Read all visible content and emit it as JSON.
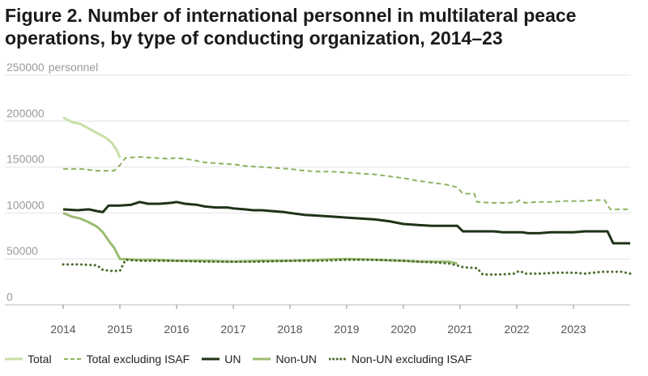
{
  "chart_data": {
    "type": "line",
    "title": "Figure 2. Number of international personnel in multilateral peace operations, by type of conducting organization, 2014–23",
    "ylabel": "personnel",
    "ylim": [
      0,
      250000
    ],
    "yticks": [
      0,
      50000,
      100000,
      150000,
      200000,
      250000
    ],
    "ytick_labels": [
      "0",
      "50000",
      "100000",
      "150000",
      "200000",
      "250000"
    ],
    "xlim": [
      2014,
      2024
    ],
    "xticks": [
      2014,
      2015,
      2016,
      2017,
      2018,
      2019,
      2020,
      2021,
      2022,
      2023
    ],
    "xtick_labels": [
      "2014",
      "2015",
      "2016",
      "2017",
      "2018",
      "2019",
      "2020",
      "2021",
      "2022",
      "2023"
    ],
    "grid": true,
    "legend_position": "bottom",
    "series": [
      {
        "name": "Total",
        "color": "#c8dfa6",
        "style": "solid",
        "width": 3,
        "x": [
          2014.0,
          2014.15,
          2014.3,
          2014.45,
          2014.6,
          2014.75,
          2014.85,
          2014.95,
          2015.0
        ],
        "y": [
          204000,
          199000,
          197000,
          192000,
          187000,
          182000,
          177000,
          168000,
          160000
        ]
      },
      {
        "name": "Total excluding ISAF",
        "color": "#8fb35f",
        "style": "dashed",
        "width": 2,
        "x": [
          2014.0,
          2014.3,
          2014.6,
          2014.9,
          2015.0,
          2015.1,
          2015.35,
          2015.6,
          2015.85,
          2016.0,
          2016.25,
          2016.5,
          2016.75,
          2017.0,
          2017.25,
          2017.5,
          2017.75,
          2018.0,
          2018.25,
          2018.5,
          2018.75,
          2019.0,
          2019.25,
          2019.5,
          2019.75,
          2020.0,
          2020.25,
          2020.5,
          2020.75,
          2020.95,
          2021.05,
          2021.25,
          2021.3,
          2021.55,
          2021.85,
          2022.0,
          2022.05,
          2022.15,
          2022.35,
          2022.6,
          2022.85,
          2023.0,
          2023.15,
          2023.4,
          2023.55,
          2023.65,
          2023.75,
          2023.95,
          2024.0
        ],
        "y": [
          148000,
          148000,
          146000,
          146000,
          152000,
          160000,
          161000,
          160000,
          159000,
          160000,
          158000,
          155000,
          154000,
          153000,
          151000,
          150000,
          149000,
          148000,
          146000,
          145000,
          145000,
          144000,
          143000,
          142000,
          140000,
          138000,
          135000,
          133000,
          131000,
          128000,
          121000,
          121000,
          112000,
          111000,
          111000,
          112000,
          114000,
          111000,
          112000,
          112000,
          113000,
          113000,
          113000,
          114000,
          114000,
          104000,
          104000,
          104000,
          101000
        ]
      },
      {
        "name": "UN",
        "color": "#1f3317",
        "style": "solid",
        "width": 3,
        "x": [
          2014.0,
          2014.25,
          2014.45,
          2014.6,
          2014.7,
          2014.8,
          2015.0,
          2015.2,
          2015.35,
          2015.5,
          2015.7,
          2015.9,
          2016.0,
          2016.15,
          2016.35,
          2016.5,
          2016.7,
          2016.9,
          2017.0,
          2017.2,
          2017.35,
          2017.5,
          2017.7,
          2017.9,
          2018.0,
          2018.25,
          2018.5,
          2018.75,
          2019.0,
          2019.25,
          2019.5,
          2019.75,
          2020.0,
          2020.25,
          2020.5,
          2020.75,
          2020.95,
          2021.05,
          2021.35,
          2021.6,
          2021.75,
          2021.85,
          2022.0,
          2022.1,
          2022.2,
          2022.4,
          2022.6,
          2022.8,
          2023.0,
          2023.2,
          2023.4,
          2023.6,
          2023.7,
          2023.8,
          2024.0
        ],
        "y": [
          104000,
          103000,
          104000,
          102000,
          101000,
          108000,
          108000,
          109000,
          112000,
          110000,
          110000,
          111000,
          112000,
          110000,
          109000,
          107000,
          106000,
          106000,
          105000,
          104000,
          103000,
          103000,
          102000,
          101000,
          100000,
          98000,
          97000,
          96000,
          95000,
          94000,
          93000,
          91000,
          88000,
          87000,
          86000,
          86000,
          86000,
          80000,
          80000,
          80000,
          79000,
          79000,
          79000,
          79000,
          78000,
          78000,
          79000,
          79000,
          79000,
          80000,
          80000,
          80000,
          67000,
          67000,
          67000
        ]
      },
      {
        "name": "Non-UN",
        "color": "#9cbc72",
        "style": "solid",
        "width": 3,
        "x": [
          2014.0,
          2014.15,
          2014.3,
          2014.45,
          2014.6,
          2014.7,
          2014.8,
          2014.9,
          2015.0,
          2015.3,
          2015.6,
          2016.0,
          2016.5,
          2017.0,
          2017.5,
          2018.0,
          2018.5,
          2019.0,
          2019.5,
          2020.0,
          2020.3,
          2020.5,
          2020.8,
          2020.95
        ],
        "y": [
          100000,
          96000,
          94000,
          90000,
          85000,
          79000,
          70000,
          62000,
          50000,
          49000,
          49000,
          48000,
          48000,
          47000,
          48000,
          48000,
          49000,
          50000,
          49000,
          48000,
          47000,
          47000,
          47000,
          45000
        ]
      },
      {
        "name": "Non-UN excluding ISAF",
        "color": "#4a6a2a",
        "style": "dotted",
        "width": 3,
        "x": [
          2014.0,
          2014.3,
          2014.6,
          2014.7,
          2014.85,
          2015.0,
          2015.1,
          2015.4,
          2015.8,
          2016.0,
          2016.5,
          2017.0,
          2017.5,
          2018.0,
          2018.5,
          2019.0,
          2019.5,
          2020.0,
          2020.3,
          2020.6,
          2020.8,
          2020.95,
          2021.05,
          2021.3,
          2021.4,
          2021.7,
          2021.95,
          2022.05,
          2022.15,
          2022.4,
          2022.7,
          2023.0,
          2023.2,
          2023.5,
          2023.85,
          2024.0
        ],
        "y": [
          44000,
          44000,
          43000,
          38000,
          37000,
          37000,
          49000,
          48000,
          48000,
          48000,
          47000,
          47000,
          47000,
          48000,
          48000,
          49000,
          49000,
          48000,
          47000,
          46000,
          45000,
          43000,
          41000,
          40000,
          33000,
          33000,
          34000,
          37000,
          34000,
          34000,
          35000,
          35000,
          34000,
          36000,
          36000,
          34000
        ]
      }
    ]
  }
}
